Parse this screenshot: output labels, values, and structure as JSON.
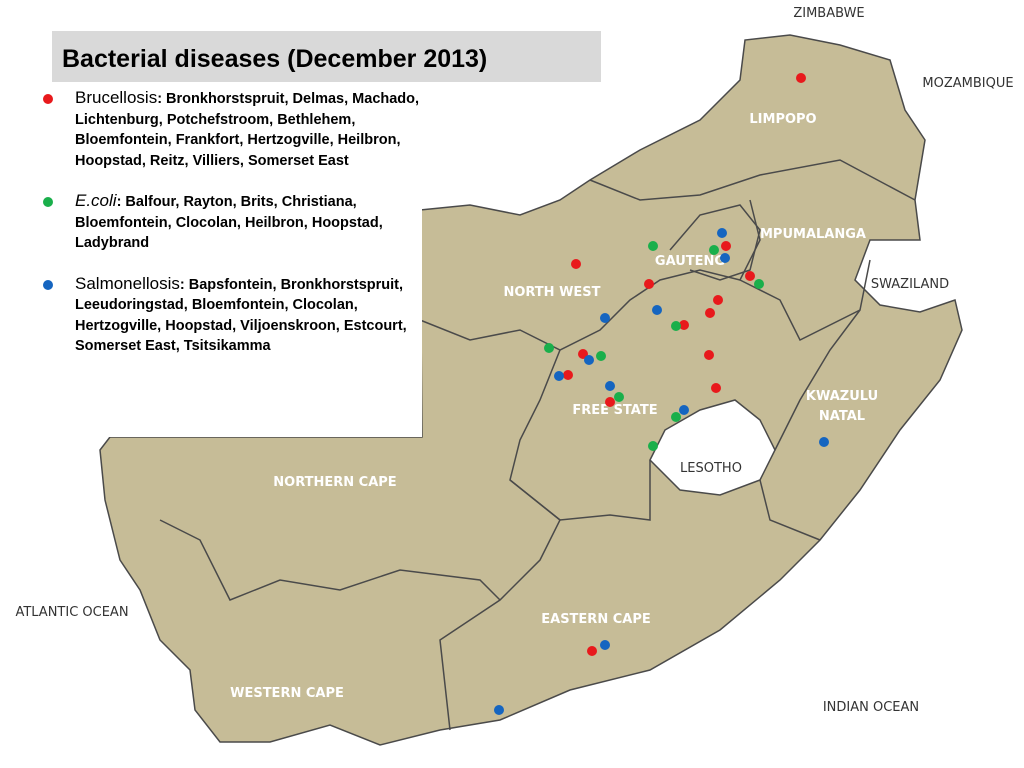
{
  "title": "Bacterial diseases (December 2013)",
  "legend": [
    {
      "name": "Brucellosis",
      "places": ": Bronkhorstspruit, Delmas, Machado, Lichtenburg, Potchefstroom, Bethlehem, Bloemfontein, Frankfort, Hertzogville, Heilbron, Hoopstad, Reitz, Villiers, Somerset East",
      "color": "#e8191c"
    },
    {
      "name": "E.coli",
      "places": ": Balfour, Rayton, Brits, Christiana, Bloemfontein, Clocolan, Heilbron, Hoopstad,  Ladybrand",
      "color": "#1aaf4b"
    },
    {
      "name": "Salmonellosis",
      "places": ": Bapsfontein, Bronkhorstspruit, Leeudoringstad, Bloemfontein, Clocolan, Hertzogville, Hoopstad, Viljoenskroon, Estcourt, Somerset East, Tsitsikamma",
      "color": "#1565c0"
    }
  ],
  "regions": [
    "LIMPOPO",
    "MPUMALANGA",
    "GAUTENG",
    "NORTH WEST",
    "FREE STATE",
    "KWAZULU NATAL",
    "NORTHERN CAPE",
    "EASTERN CAPE",
    "WESTERN CAPE"
  ],
  "surroundings": [
    "ZIMBABWE",
    "MOZAMBIQUE",
    "SWAZILAND",
    "LESOTHO",
    "ATLANTIC OCEAN",
    "INDIAN OCEAN"
  ]
}
